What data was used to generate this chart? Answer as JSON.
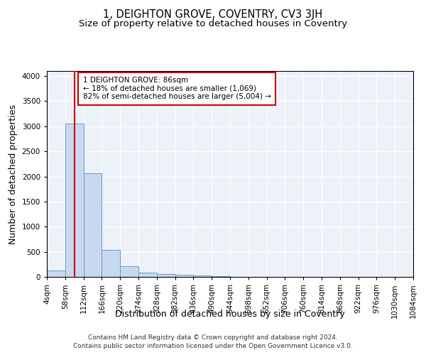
{
  "title": "1, DEIGHTON GROVE, COVENTRY, CV3 3JH",
  "subtitle": "Size of property relative to detached houses in Coventry",
  "xlabel": "Distribution of detached houses by size in Coventry",
  "ylabel": "Number of detached properties",
  "footer_line1": "Contains HM Land Registry data © Crown copyright and database right 2024.",
  "footer_line2": "Contains public sector information licensed under the Open Government Licence v3.0.",
  "annotation_line1": "1 DEIGHTON GROVE: 86sqm",
  "annotation_line2": "← 18% of detached houses are smaller (1,069)",
  "annotation_line3": "82% of semi-detached houses are larger (5,004) →",
  "bar_edges": [
    4,
    58,
    112,
    166,
    220,
    274,
    328,
    382,
    436,
    490,
    544,
    598,
    652,
    706,
    760,
    814,
    868,
    922,
    976,
    1030,
    1084
  ],
  "bar_heights": [
    130,
    3050,
    2060,
    540,
    210,
    80,
    55,
    40,
    35,
    10,
    5,
    5,
    3,
    2,
    2,
    2,
    2,
    1,
    1,
    1
  ],
  "bar_color": "#c8d9ef",
  "bar_edge_color": "#6699cc",
  "vline_color": "#cc0000",
  "vline_x": 86,
  "annotation_box_color": "#cc0000",
  "ylim": [
    0,
    4100
  ],
  "yticks": [
    0,
    500,
    1000,
    1500,
    2000,
    2500,
    3000,
    3500,
    4000
  ],
  "bg_color": "#edf2f9",
  "grid_color": "#ffffff",
  "title_fontsize": 10.5,
  "subtitle_fontsize": 9.5,
  "axis_fontsize": 9,
  "tick_fontsize": 7.5,
  "footer_fontsize": 6.5
}
